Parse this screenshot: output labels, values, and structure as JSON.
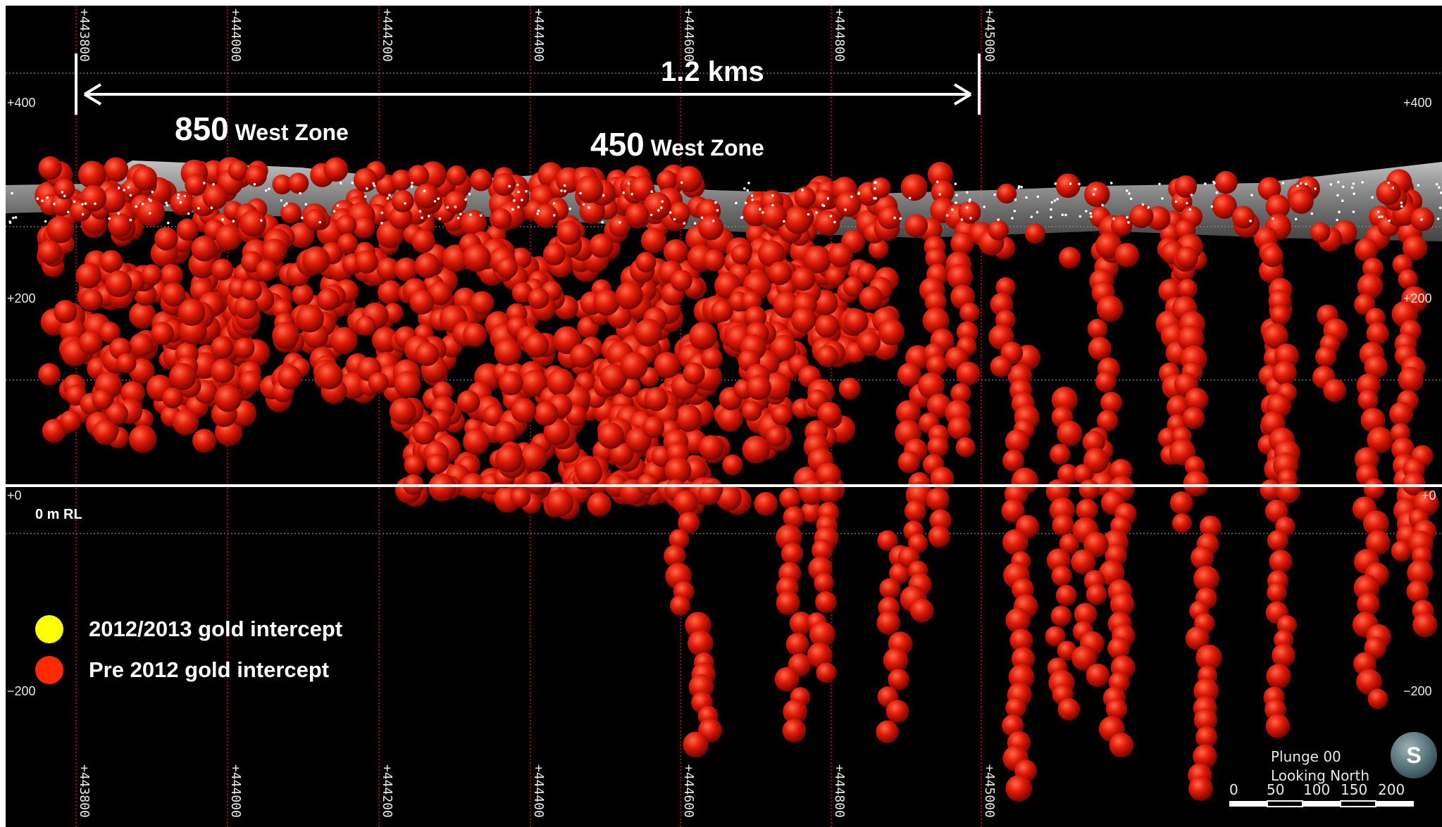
{
  "measure": {
    "label": "1.2 kms"
  },
  "zones": [
    {
      "number": "850",
      "name": " West Zone"
    },
    {
      "number": "450",
      "name": " West Zone"
    }
  ],
  "rl_labels": {
    "p400": "+400",
    "p200": "+200",
    "zero": "+0",
    "m200": "−200",
    "p400_right": "+400",
    "p200_right": "+200",
    "zero_right": "+0",
    "m200_right": "−200"
  },
  "zero_caption": "0 m RL",
  "eastings": [
    "+443800",
    "+444000",
    "+444200",
    "+444400",
    "+444600",
    "+444800",
    "+445000"
  ],
  "legend": [
    {
      "label": "2012/2013 gold intercept",
      "color": "#ffff00"
    },
    {
      "label": "Pre 2012 gold intercept",
      "color": "#ff2a00"
    }
  ],
  "view": {
    "plunge": "Plunge 00",
    "looking": "Looking North",
    "compass": "S"
  },
  "scale_bar": {
    "ticks": [
      "0",
      "50",
      "100",
      "150",
      "200"
    ]
  },
  "colors": {
    "background": "#000000",
    "intercept": "#d8150a",
    "grid_vertical": "#cc1111",
    "grid_horizontal": "#9aa8b8",
    "surface": "#c9c9c9"
  }
}
